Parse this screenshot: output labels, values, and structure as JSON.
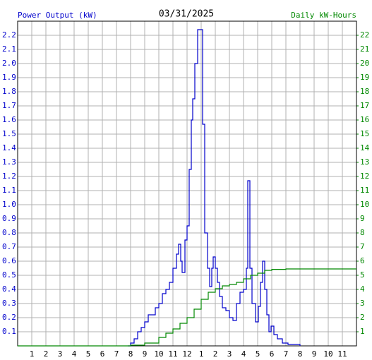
{
  "chart_data": {
    "type": "line",
    "step": true,
    "title": "03/31/2025",
    "ylabel": "Power Output (kW)",
    "y2label": "Daily kW-Hours",
    "grid": true,
    "xlim": [
      0,
      24
    ],
    "xticks": [
      {
        "value": 1,
        "label": "1"
      },
      {
        "value": 2,
        "label": "2"
      },
      {
        "value": 3,
        "label": "3"
      },
      {
        "value": 4,
        "label": "4"
      },
      {
        "value": 5,
        "label": "5"
      },
      {
        "value": 6,
        "label": "6"
      },
      {
        "value": 7,
        "label": "7"
      },
      {
        "value": 8,
        "label": "8"
      },
      {
        "value": 9,
        "label": "9"
      },
      {
        "value": 10,
        "label": "10"
      },
      {
        "value": 11,
        "label": "11"
      },
      {
        "value": 12,
        "label": "12"
      },
      {
        "value": 13,
        "label": "1"
      },
      {
        "value": 14,
        "label": "2"
      },
      {
        "value": 15,
        "label": "3"
      },
      {
        "value": 16,
        "label": "4"
      },
      {
        "value": 17,
        "label": "5"
      },
      {
        "value": 18,
        "label": "6"
      },
      {
        "value": 19,
        "label": "7"
      },
      {
        "value": 20,
        "label": "8"
      },
      {
        "value": 21,
        "label": "9"
      },
      {
        "value": 22,
        "label": "10"
      },
      {
        "value": 23,
        "label": "11"
      }
    ],
    "ylim": [
      0,
      2.3
    ],
    "yticks": [
      0.1,
      0.2,
      0.3,
      0.4,
      0.5,
      0.6,
      0.7,
      0.8,
      0.9,
      {
        "value": 1,
        "label": "1.0"
      },
      1.1,
      1.2,
      1.3,
      1.4,
      1.5,
      1.6,
      1.7,
      1.8,
      1.9,
      {
        "value": 2,
        "label": "2.0"
      },
      2.1,
      2.2
    ],
    "y2lim": [
      0,
      23
    ],
    "y2ticks": [
      1,
      2,
      3,
      4,
      5,
      6,
      7,
      8,
      9,
      10,
      11,
      12,
      13,
      14,
      15,
      16,
      17,
      18,
      19,
      20,
      21,
      22
    ],
    "series": [
      {
        "name": "Power Output (kW)",
        "color": "#0000cc",
        "axis": "y",
        "x": [
          7.8,
          8.0,
          8.25,
          8.5,
          8.75,
          9.0,
          9.25,
          9.5,
          9.75,
          10.0,
          10.25,
          10.5,
          10.75,
          11.0,
          11.25,
          11.4,
          11.55,
          11.65,
          11.85,
          12.0,
          12.15,
          12.3,
          12.4,
          12.55,
          12.75,
          12.95,
          13.1,
          13.25,
          13.45,
          13.6,
          13.75,
          13.85,
          14.0,
          14.15,
          14.3,
          14.5,
          14.75,
          15.0,
          15.25,
          15.5,
          15.75,
          16.0,
          16.2,
          16.3,
          16.45,
          16.6,
          16.85,
          17.05,
          17.2,
          17.35,
          17.5,
          17.65,
          17.8,
          17.95,
          18.15,
          18.4,
          18.75,
          19.15,
          20.0
        ],
        "values": [
          0,
          0.02,
          0.05,
          0.1,
          0.13,
          0.17,
          0.22,
          0.22,
          0.27,
          0.3,
          0.37,
          0.4,
          0.45,
          0.55,
          0.65,
          0.72,
          0.6,
          0.52,
          0.75,
          0.85,
          1.25,
          1.6,
          1.75,
          2.0,
          2.24,
          2.24,
          1.57,
          0.8,
          0.55,
          0.42,
          0.55,
          0.63,
          0.55,
          0.45,
          0.35,
          0.27,
          0.25,
          0.2,
          0.18,
          0.3,
          0.38,
          0.4,
          0.55,
          1.17,
          0.55,
          0.3,
          0.17,
          0.28,
          0.45,
          0.6,
          0.4,
          0.22,
          0.1,
          0.14,
          0.08,
          0.05,
          0.02,
          0.01,
          0
        ]
      },
      {
        "name": "Daily kW-Hours",
        "color": "#008800",
        "axis": "y2",
        "x": [
          0,
          8,
          9,
          10,
          10.5,
          11,
          11.5,
          12,
          12.5,
          13,
          13.5,
          14,
          14.5,
          15,
          15.5,
          16,
          16.5,
          17,
          17.5,
          18,
          19,
          24
        ],
        "values": [
          0,
          0.05,
          0.2,
          0.6,
          0.9,
          1.2,
          1.6,
          2.0,
          2.6,
          3.3,
          3.8,
          4.05,
          4.25,
          4.35,
          4.5,
          4.75,
          5.0,
          5.15,
          5.35,
          5.42,
          5.45,
          5.45
        ]
      }
    ]
  }
}
